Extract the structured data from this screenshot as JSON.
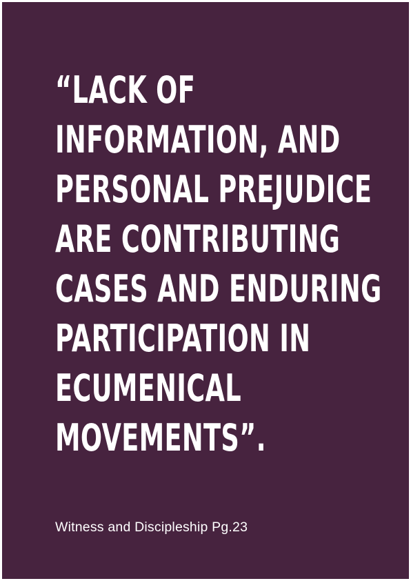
{
  "quote": {
    "lines": [
      "“LACK OF",
      "INFORMATION, AND",
      "PERSONAL PREJUDICE",
      "ARE CONTRIBUTING",
      "CASES AND ENDURING",
      "PARTICIPATION IN",
      "ECUMENICAL",
      "MOVEMENTS”."
    ]
  },
  "source": {
    "text": "Witness and Discipleship Pg.23"
  },
  "colors": {
    "background": "#47233f",
    "text": "#ffffff"
  }
}
